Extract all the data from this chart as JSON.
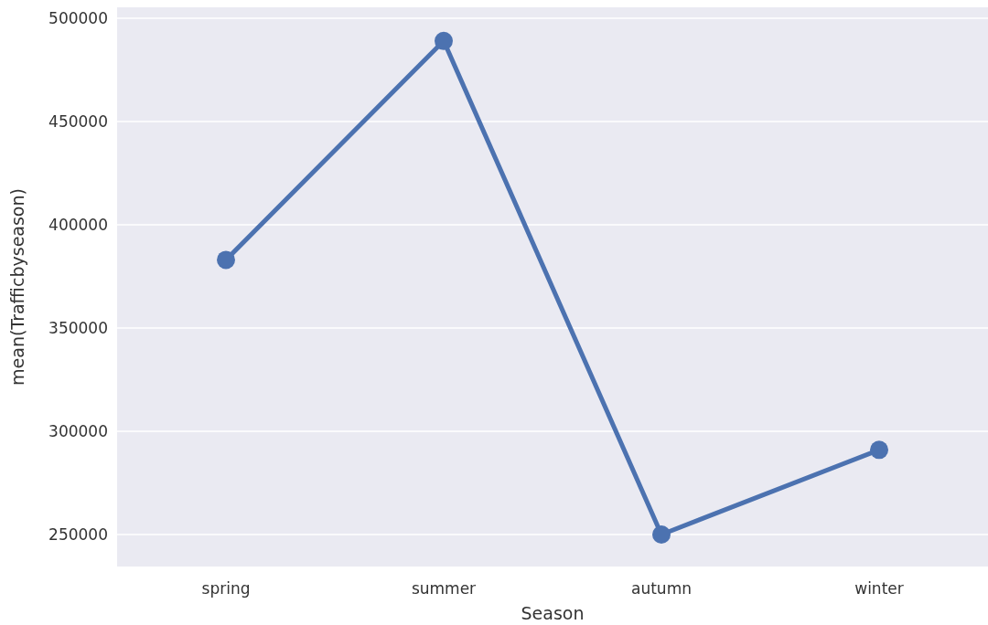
{
  "chart_data": {
    "type": "line",
    "xlabel": "Season",
    "ylabel": "mean(Trafficbyseason)",
    "categories": [
      "spring",
      "summer",
      "autumn",
      "winter"
    ],
    "series": [
      {
        "color": "#4c72b0",
        "values": [
          383000,
          489000,
          250000,
          291000
        ]
      }
    ],
    "ylim": [
      234500,
      505300
    ],
    "yticks": [
      250000,
      300000,
      350000,
      400000,
      450000,
      500000
    ],
    "grid": "y",
    "marker": "circle",
    "line_style": "solid"
  }
}
